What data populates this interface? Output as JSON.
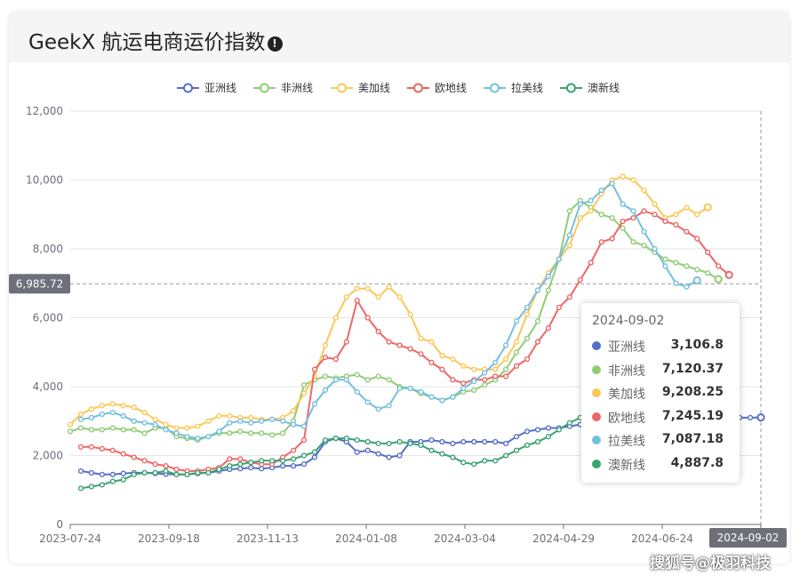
{
  "header": {
    "title": "GeekX 航运电商运价指数",
    "info_icon": "exclamation-circle-icon"
  },
  "watermark": "搜狐号@极羽科技",
  "chart_data": {
    "type": "line",
    "title": "",
    "xlabel": "",
    "ylabel": "",
    "ylim": [
      0,
      12000
    ],
    "yticks": [
      "0",
      "2,000",
      "4,000",
      "6,000",
      "8,000",
      "10,000",
      "12,000"
    ],
    "x_tick_labels": [
      "2023-07-24",
      "2023-09-18",
      "2023-11-13",
      "2024-01-08",
      "2024-03-04",
      "2024-04-29",
      "2024-06-24",
      "2024-09-02"
    ],
    "grid": true,
    "legend_position": "top-center",
    "x_count": 66,
    "series": [
      {
        "name": "亚洲线",
        "color": "#5470c6",
        "start_index": 1,
        "values": [
          1550,
          1500,
          1450,
          1450,
          1480,
          1500,
          1500,
          1480,
          1460,
          1450,
          1450,
          1480,
          1500,
          1550,
          1600,
          1620,
          1650,
          1620,
          1650,
          1700,
          1700,
          1750,
          1950,
          2400,
          2500,
          2400,
          2100,
          2150,
          2050,
          1950,
          2000,
          2400,
          2400,
          2450,
          2400,
          2350,
          2400,
          2400,
          2400,
          2400,
          2350,
          2550,
          2700,
          2750,
          2800,
          2800,
          2850,
          2900,
          2950,
          3000,
          3050,
          3100,
          3150,
          3200,
          3250,
          3250,
          3200,
          3150,
          3100,
          3100,
          3100,
          3100,
          3100,
          3100,
          3106.8
        ]
      },
      {
        "name": "非洲线",
        "color": "#91cc75",
        "start_index": 0,
        "values": [
          2700,
          2800,
          2750,
          2750,
          2800,
          2750,
          2750,
          2650,
          2800,
          2800,
          2550,
          2500,
          2450,
          2550,
          2650,
          2650,
          2700,
          2650,
          2650,
          2600,
          2650,
          3000,
          4050,
          4200,
          4300,
          4250,
          4300,
          4350,
          4200,
          4300,
          4200,
          4000,
          3950,
          3800,
          3700,
          3600,
          3700,
          3850,
          3900,
          4050,
          4200,
          4500,
          5000,
          5400,
          5900,
          6800,
          7700,
          9100,
          9400,
          9200,
          9000,
          8900,
          8600,
          8200,
          8100,
          7900,
          7700,
          7600,
          7500,
          7400,
          7300,
          7120.37
        ]
      },
      {
        "name": "美加线",
        "color": "#fac858",
        "start_index": 0,
        "values": [
          2900,
          3200,
          3350,
          3450,
          3500,
          3450,
          3400,
          3250,
          3050,
          2900,
          2800,
          2800,
          2850,
          3000,
          3150,
          3150,
          3100,
          3100,
          3050,
          3050,
          3100,
          3300,
          3800,
          4300,
          5200,
          6000,
          6600,
          6850,
          6850,
          6600,
          6900,
          6600,
          6100,
          5400,
          5300,
          4900,
          4800,
          4600,
          4500,
          4500,
          4500,
          4800,
          5300,
          6100,
          6800,
          7300,
          7700,
          8100,
          8900,
          9100,
          9600,
          10000,
          10100,
          10000,
          9700,
          9300,
          8900,
          9000,
          9200,
          9000,
          9208.25
        ]
      },
      {
        "name": "欧地线",
        "color": "#ee6666",
        "start_index": 1,
        "values": [
          2250,
          2250,
          2200,
          2150,
          2050,
          1950,
          1850,
          1750,
          1700,
          1600,
          1550,
          1550,
          1600,
          1650,
          1900,
          1900,
          1800,
          1750,
          1750,
          1950,
          2150,
          2450,
          4500,
          4850,
          4800,
          5300,
          6500,
          6000,
          5600,
          5300,
          5200,
          5100,
          4950,
          4700,
          4500,
          4200,
          4100,
          4200,
          4200,
          4300,
          4300,
          4600,
          4800,
          5300,
          5700,
          6300,
          6600,
          7100,
          7600,
          8200,
          8300,
          8800,
          8900,
          9100,
          9000,
          8800,
          8700,
          8500,
          8300,
          7900,
          7500,
          7245.19
        ]
      },
      {
        "name": "拉美线",
        "color": "#73c0de",
        "start_index": 1,
        "values": [
          3050,
          3100,
          3200,
          3250,
          3150,
          3000,
          2950,
          2900,
          2750,
          2650,
          2550,
          2500,
          2550,
          2700,
          2950,
          3000,
          2950,
          3000,
          3050,
          3000,
          2900,
          2850,
          3500,
          3900,
          4200,
          4200,
          3850,
          3550,
          3350,
          3450,
          3950,
          3950,
          3850,
          3700,
          3600,
          3700,
          3950,
          4150,
          4400,
          4700,
          5200,
          5900,
          6300,
          6800,
          7200,
          7700,
          8400,
          9300,
          9400,
          9700,
          9900,
          9300,
          9100,
          8500,
          8000,
          7500,
          7000,
          6900,
          7087.18
        ]
      },
      {
        "name": "澳新线",
        "color": "#3ba272",
        "start_index": 1,
        "values": [
          1050,
          1100,
          1150,
          1250,
          1300,
          1450,
          1500,
          1500,
          1550,
          1450,
          1450,
          1500,
          1500,
          1600,
          1700,
          1750,
          1800,
          1850,
          1850,
          1850,
          1900,
          2000,
          2100,
          2450,
          2500,
          2500,
          2450,
          2400,
          2350,
          2350,
          2400,
          2350,
          2300,
          2150,
          2050,
          1950,
          1800,
          1750,
          1850,
          1850,
          2000,
          2150,
          2300,
          2400,
          2550,
          2750,
          2950,
          3100,
          3300,
          3500,
          3650,
          3800,
          3900,
          4000,
          4100,
          4200,
          4300,
          4400,
          4887.8
        ]
      }
    ],
    "crosshair": {
      "y_value": "6,985.72",
      "x_label": "2024-09-02"
    },
    "tooltip": {
      "date": "2024-09-02",
      "rows": [
        {
          "name": "亚洲线",
          "value": "3,106.8",
          "color": "#5470c6"
        },
        {
          "name": "非洲线",
          "value": "7,120.37",
          "color": "#91cc75"
        },
        {
          "name": "美加线",
          "value": "9,208.25",
          "color": "#fac858"
        },
        {
          "name": "欧地线",
          "value": "7,245.19",
          "color": "#ee6666"
        },
        {
          "name": "拉美线",
          "value": "7,087.18",
          "color": "#73c0de"
        },
        {
          "name": "澳新线",
          "value": "4,887.8",
          "color": "#3ba272"
        }
      ]
    }
  }
}
